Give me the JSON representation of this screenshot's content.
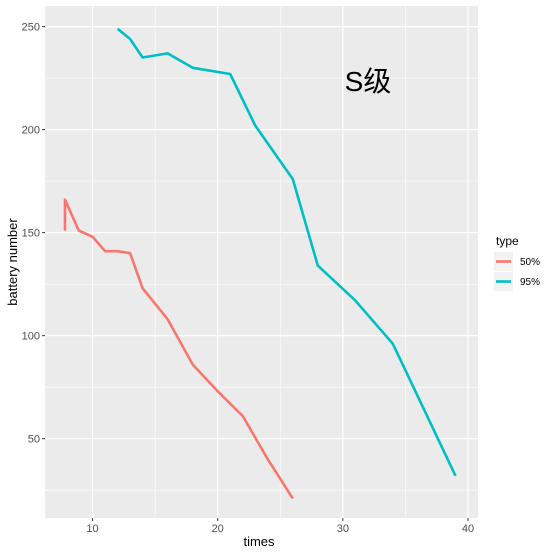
{
  "chart_data": {
    "type": "line",
    "title": "",
    "annotation": "S级",
    "xlabel": "times",
    "ylabel": "battery number",
    "xlim": [
      6.2,
      40.8
    ],
    "ylim": [
      11.5,
      260
    ],
    "x_ticks": [
      10,
      20,
      30,
      40
    ],
    "y_ticks": [
      50,
      100,
      150,
      200,
      250
    ],
    "grid": true,
    "legend": {
      "title": "type",
      "position": "right"
    },
    "series": [
      {
        "name": "50%",
        "color": "#F8766D",
        "x": [
          7.8,
          7.8,
          8.9,
          10,
          11,
          12,
          13,
          14,
          16,
          18,
          20,
          22,
          24,
          26
        ],
        "y": [
          151,
          166,
          151,
          148,
          141,
          141,
          140,
          123,
          108,
          86,
          73,
          61,
          40,
          21
        ]
      },
      {
        "name": "95%",
        "color": "#00BFC4",
        "x": [
          12,
          13,
          14,
          16,
          18,
          21,
          23,
          26,
          28,
          31,
          34,
          39
        ],
        "y": [
          249,
          244,
          235,
          237,
          230,
          227,
          202,
          176,
          134,
          117,
          96,
          32
        ]
      }
    ]
  }
}
